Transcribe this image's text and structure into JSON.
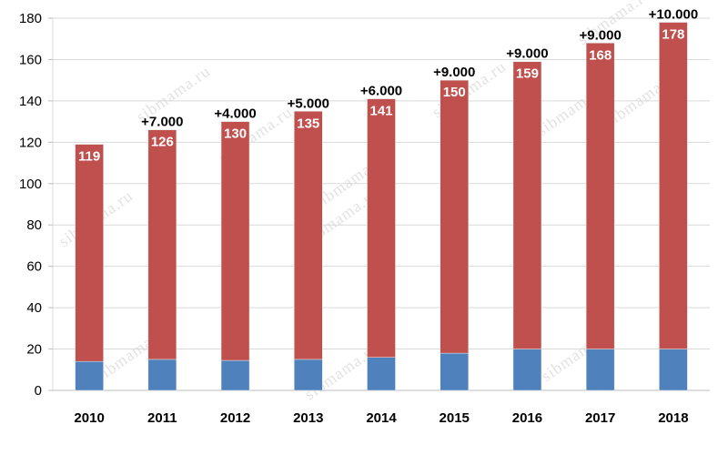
{
  "chart_data": {
    "type": "bar",
    "stacked": true,
    "categories": [
      "2010",
      "2011",
      "2012",
      "2013",
      "2014",
      "2015",
      "2016",
      "2017",
      "2018"
    ],
    "series": [
      {
        "values": [
          14,
          15,
          14.5,
          15,
          16,
          18,
          20,
          20,
          20
        ],
        "color": "#4f81bd"
      },
      {
        "values": [
          105,
          111,
          115.5,
          120,
          125,
          132,
          139,
          148,
          158
        ],
        "color": "#c0504d"
      }
    ],
    "totals": [
      119,
      126,
      130,
      135,
      141,
      150,
      159,
      168,
      178
    ],
    "total_labels": [
      "119",
      "126",
      "130",
      "135",
      "141",
      "150",
      "159",
      "168",
      "178"
    ],
    "annotations": [
      "",
      "+7.000",
      "+4.000",
      "+5.000",
      "+6.000",
      "+9.000",
      "+9.000",
      "+9.000",
      "+10.000"
    ],
    "y_ticks": [
      0,
      20,
      40,
      60,
      80,
      100,
      120,
      140,
      160,
      180
    ],
    "ylim": [
      0,
      180
    ],
    "grid": true,
    "legend": "none",
    "watermark": "sibmama.ru"
  }
}
